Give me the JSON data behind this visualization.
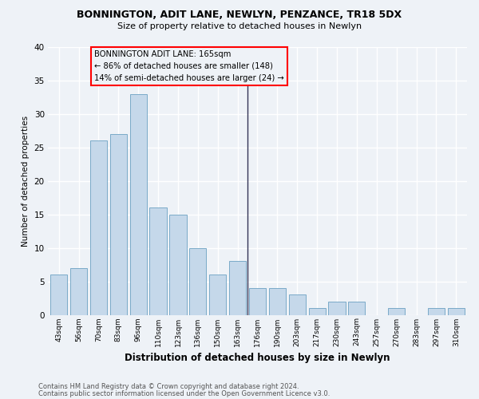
{
  "title": "BONNINGTON, ADIT LANE, NEWLYN, PENZANCE, TR18 5DX",
  "subtitle": "Size of property relative to detached houses in Newlyn",
  "xlabel": "Distribution of detached houses by size in Newlyn",
  "ylabel": "Number of detached properties",
  "categories": [
    "43sqm",
    "56sqm",
    "70sqm",
    "83sqm",
    "96sqm",
    "110sqm",
    "123sqm",
    "136sqm",
    "150sqm",
    "163sqm",
    "176sqm",
    "190sqm",
    "203sqm",
    "217sqm",
    "230sqm",
    "243sqm",
    "257sqm",
    "270sqm",
    "283sqm",
    "297sqm",
    "310sqm"
  ],
  "values": [
    6,
    7,
    26,
    27,
    33,
    16,
    15,
    10,
    6,
    8,
    4,
    4,
    3,
    1,
    2,
    2,
    0,
    1,
    0,
    1,
    1
  ],
  "bar_color": "#c5d8ea",
  "bar_edge_color": "#7aaac8",
  "annotation_line1": "BONNINGTON ADIT LANE: 165sqm",
  "annotation_line2": "← 86% of detached houses are smaller (148)",
  "annotation_line3": "14% of semi-detached houses are larger (24) →",
  "vline_color": "#333355",
  "vline_x": 9.5,
  "ylim": [
    0,
    40
  ],
  "yticks": [
    0,
    5,
    10,
    15,
    20,
    25,
    30,
    35,
    40
  ],
  "background_color": "#eef2f7",
  "grid_color": "#ffffff",
  "footer_line1": "Contains HM Land Registry data © Crown copyright and database right 2024.",
  "footer_line2": "Contains public sector information licensed under the Open Government Licence v3.0."
}
